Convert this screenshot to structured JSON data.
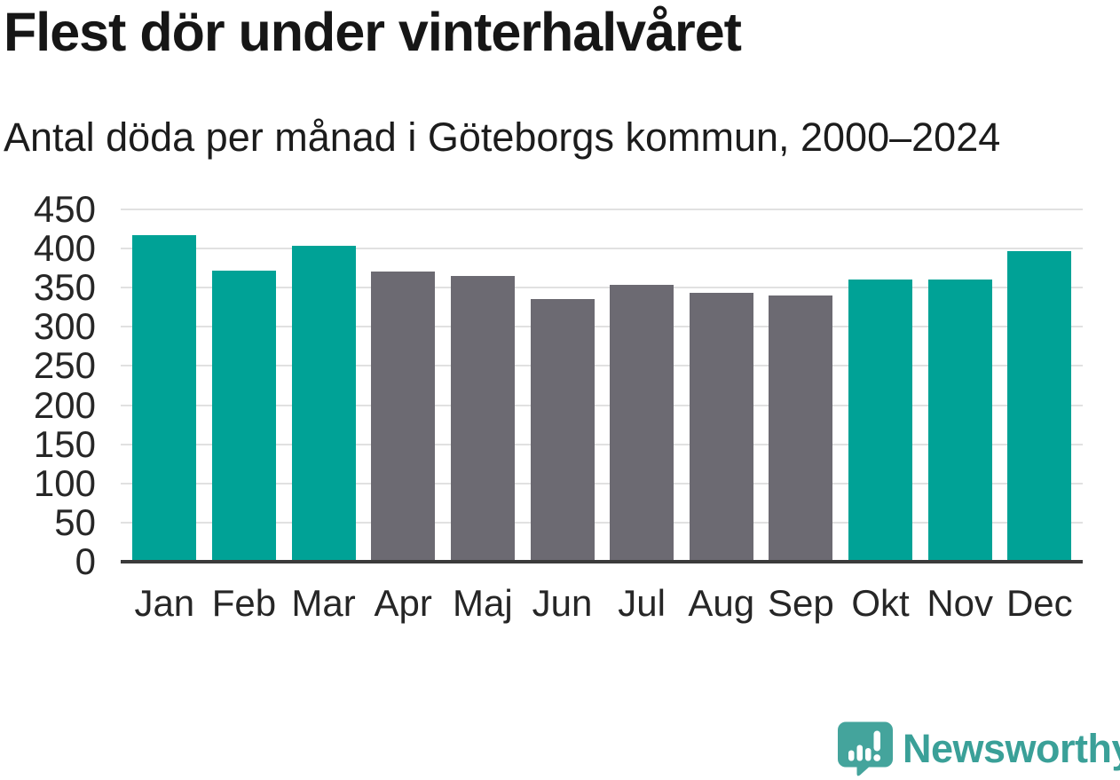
{
  "header": {
    "title": "Flest dör under vinterhalvåret",
    "subtitle": "Antal döda per månad i Göteborgs kommun, 2000–2024"
  },
  "chart_data": {
    "type": "bar",
    "title": "Flest dör under vinterhalvåret",
    "subtitle": "Antal döda per månad i Göteborgs kommun, 2000–2024",
    "categories": [
      "Jan",
      "Feb",
      "Mar",
      "Apr",
      "Maj",
      "Jun",
      "Jul",
      "Aug",
      "Sep",
      "Okt",
      "Nov",
      "Dec"
    ],
    "values": [
      417,
      372,
      404,
      371,
      365,
      336,
      354,
      343,
      340,
      360,
      361,
      397
    ],
    "bar_colors": [
      "#00a296",
      "#00a296",
      "#00a296",
      "#6c6a72",
      "#6c6a72",
      "#6c6a72",
      "#6c6a72",
      "#6c6a72",
      "#6c6a72",
      "#00a296",
      "#00a296",
      "#00a296"
    ],
    "highlight_color": "#00a296",
    "muted_color": "#6c6a72",
    "xlabel": "",
    "ylabel": "",
    "ylim": [
      0,
      450
    ],
    "yticks": [
      0,
      50,
      100,
      150,
      200,
      250,
      300,
      350,
      400,
      450
    ],
    "grid": true,
    "gridline_color": "#e1e1e1",
    "axis_line_color": "#3b3b3b",
    "legend": false
  },
  "footer": {
    "brand": "Newsworthy",
    "logo_icon": "newsworthy-bubble-chart-icon",
    "icon_color": "#44a49c",
    "brand_text_color": "#3aa098"
  }
}
